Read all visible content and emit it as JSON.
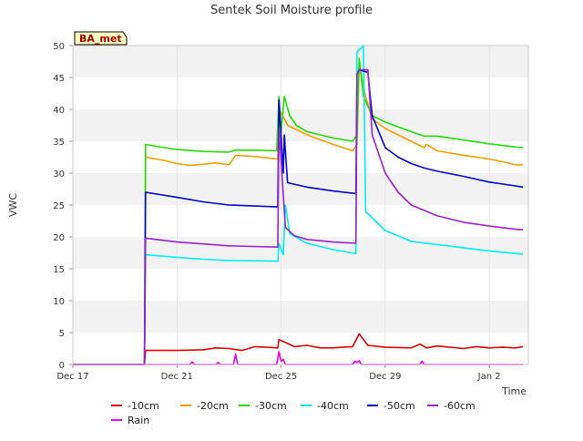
{
  "chart_data": {
    "type": "line",
    "title": "Sentek Soil Moisture profile",
    "xlabel": "Time",
    "ylabel": "VWC",
    "station_tag": "BA_met",
    "x_range": [
      "2022-12-17",
      "2023-01-03T12:00"
    ],
    "ylim": [
      0,
      50
    ],
    "y_ticks": [
      0,
      5,
      10,
      15,
      20,
      25,
      30,
      35,
      40,
      45,
      50
    ],
    "x_ticks": [
      {
        "x": "2022-12-17",
        "label": "Dec 17"
      },
      {
        "x": "2022-12-21",
        "label": "Dec 21"
      },
      {
        "x": "2022-12-25",
        "label": "Dec 25"
      },
      {
        "x": "2022-12-29",
        "label": "Dec 29"
      },
      {
        "x": "2023-01-02",
        "label": "Jan 2"
      }
    ],
    "grid": true,
    "legend_position": "bottom",
    "series": [
      {
        "name": "-10cm",
        "color": "#dd0000",
        "points": [
          [
            "2022-12-17",
            0
          ],
          [
            "2022-12-19T18:00",
            0
          ],
          [
            "2022-12-19T19:00",
            2.2
          ],
          [
            "2022-12-21",
            2.2
          ],
          [
            "2022-12-22",
            2.3
          ],
          [
            "2022-12-22T12:00",
            2.6
          ],
          [
            "2022-12-23",
            2.5
          ],
          [
            "2022-12-23T12:00",
            2.2
          ],
          [
            "2022-12-24",
            2.8
          ],
          [
            "2022-12-24T21:00",
            2.6
          ],
          [
            "2022-12-24T22:00",
            3.9
          ],
          [
            "2022-12-25T06:00",
            3.3
          ],
          [
            "2022-12-25T12:00",
            2.8
          ],
          [
            "2022-12-26",
            3.0
          ],
          [
            "2022-12-26T12:00",
            2.6
          ],
          [
            "2022-12-27",
            2.6
          ],
          [
            "2022-12-27T18:00",
            2.8
          ],
          [
            "2022-12-28",
            4.8
          ],
          [
            "2022-12-28T08:00",
            3.0
          ],
          [
            "2022-12-29",
            2.7
          ],
          [
            "2022-12-30",
            2.6
          ],
          [
            "2022-12-30T08:00",
            3.2
          ],
          [
            "2022-12-30T14:00",
            2.6
          ],
          [
            "2022-12-31",
            2.9
          ],
          [
            "2023-01-01",
            2.5
          ],
          [
            "2023-01-01T12:00",
            2.8
          ],
          [
            "2023-01-02",
            2.6
          ],
          [
            "2023-01-02T12:00",
            2.7
          ],
          [
            "2023-01-03",
            2.6
          ],
          [
            "2023-01-03T07:00",
            2.8
          ]
        ]
      },
      {
        "name": "-20cm",
        "color": "#f0a000",
        "points": [
          [
            "2022-12-17",
            0
          ],
          [
            "2022-12-19T18:00",
            0
          ],
          [
            "2022-12-19T19:00",
            32.5
          ],
          [
            "2022-12-20T12:00",
            32.0
          ],
          [
            "2022-12-21",
            31.5
          ],
          [
            "2022-12-21T12:00",
            31.2
          ],
          [
            "2022-12-22",
            31.4
          ],
          [
            "2022-12-22T12:00",
            31.6
          ],
          [
            "2022-12-23",
            31.3
          ],
          [
            "2022-12-23T06:00",
            32.8
          ],
          [
            "2022-12-24",
            32.6
          ],
          [
            "2022-12-24T21:00",
            32.2
          ],
          [
            "2022-12-24T22:00",
            38.0
          ],
          [
            "2022-12-25",
            39.5
          ],
          [
            "2022-12-25T06:00",
            37.5
          ],
          [
            "2022-12-25T18:00",
            36.5
          ],
          [
            "2022-12-26",
            36.0
          ],
          [
            "2022-12-27",
            34.5
          ],
          [
            "2022-12-27T18:00",
            33.5
          ],
          [
            "2022-12-27T22:00",
            34.5
          ],
          [
            "2022-12-28",
            47.0
          ],
          [
            "2022-12-28T06:00",
            42.0
          ],
          [
            "2022-12-28T12:00",
            38.5
          ],
          [
            "2022-12-29",
            37.0
          ],
          [
            "2022-12-29T12:00",
            36.0
          ],
          [
            "2022-12-30",
            35.0
          ],
          [
            "2022-12-30T12:00",
            34.0
          ],
          [
            "2022-12-30T14:00",
            34.5
          ],
          [
            "2022-12-31",
            33.5
          ],
          [
            "2023-01-01",
            32.8
          ],
          [
            "2023-01-02",
            32.2
          ],
          [
            "2023-01-02T12:00",
            31.8
          ],
          [
            "2023-01-03",
            31.3
          ],
          [
            "2023-01-03T07:00",
            31.3
          ]
        ]
      },
      {
        "name": "-30cm",
        "color": "#22dd00",
        "points": [
          [
            "2022-12-17",
            0
          ],
          [
            "2022-12-19T18:00",
            0
          ],
          [
            "2022-12-19T19:00",
            34.5
          ],
          [
            "2022-12-20T12:00",
            34.0
          ],
          [
            "2022-12-21",
            33.7
          ],
          [
            "2022-12-22",
            33.4
          ],
          [
            "2022-12-23",
            33.3
          ],
          [
            "2022-12-23T06:00",
            33.6
          ],
          [
            "2022-12-24",
            33.6
          ],
          [
            "2022-12-24T20:00",
            33.5
          ],
          [
            "2022-12-24T22:00",
            42.0
          ],
          [
            "2022-12-25",
            36.5
          ],
          [
            "2022-12-25T03:00",
            42.0
          ],
          [
            "2022-12-25T08:00",
            39.0
          ],
          [
            "2022-12-25T14:00",
            37.5
          ],
          [
            "2022-12-26",
            36.5
          ],
          [
            "2022-12-27",
            35.5
          ],
          [
            "2022-12-27T18:00",
            35.0
          ],
          [
            "2022-12-27T22:00",
            36.0
          ],
          [
            "2022-12-28",
            48.0
          ],
          [
            "2022-12-28T04:00",
            42.0
          ],
          [
            "2022-12-28T12:00",
            39.0
          ],
          [
            "2022-12-29",
            38.0
          ],
          [
            "2022-12-30",
            36.5
          ],
          [
            "2022-12-30T12:00",
            35.8
          ],
          [
            "2022-12-31",
            35.8
          ],
          [
            "2023-01-01",
            35.2
          ],
          [
            "2023-01-02",
            34.6
          ],
          [
            "2023-01-03",
            34.1
          ],
          [
            "2023-01-03T07:00",
            34.0
          ]
        ]
      },
      {
        "name": "-40cm",
        "color": "#00eeee",
        "points": [
          [
            "2022-12-17",
            0
          ],
          [
            "2022-12-19T18:00",
            0
          ],
          [
            "2022-12-19T19:00",
            17.2
          ],
          [
            "2022-12-21",
            16.8
          ],
          [
            "2022-12-22",
            16.5
          ],
          [
            "2022-12-23",
            16.3
          ],
          [
            "2022-12-24T21:00",
            16.2
          ],
          [
            "2022-12-24T22:00",
            19.0
          ],
          [
            "2022-12-25T02:00",
            17.2
          ],
          [
            "2022-12-25T04:00",
            25.0
          ],
          [
            "2022-12-25T08:00",
            20.5
          ],
          [
            "2022-12-26",
            19.0
          ],
          [
            "2022-12-27",
            18.0
          ],
          [
            "2022-12-27T21:00",
            17.4
          ],
          [
            "2022-12-27T22:00",
            49.0
          ],
          [
            "2022-12-28T04:00",
            50.0
          ],
          [
            "2022-12-28T06:00",
            24.0
          ],
          [
            "2022-12-28T18:00",
            22.0
          ],
          [
            "2022-12-29",
            21.0
          ],
          [
            "2022-12-30",
            19.3
          ],
          [
            "2022-12-31",
            18.8
          ],
          [
            "2023-01-01",
            18.3
          ],
          [
            "2023-01-02",
            17.8
          ],
          [
            "2023-01-03",
            17.4
          ],
          [
            "2023-01-03T07:00",
            17.3
          ]
        ]
      },
      {
        "name": "-50cm",
        "color": "#0000cc",
        "points": [
          [
            "2022-12-17",
            0
          ],
          [
            "2022-12-19T18:00",
            0
          ],
          [
            "2022-12-19T19:00",
            27.0
          ],
          [
            "2022-12-21",
            26.2
          ],
          [
            "2022-12-22",
            25.5
          ],
          [
            "2022-12-23",
            25.0
          ],
          [
            "2022-12-24T21:00",
            24.7
          ],
          [
            "2022-12-24T22:00",
            41.5
          ],
          [
            "2022-12-25T02:00",
            30.0
          ],
          [
            "2022-12-25T03:00",
            36.0
          ],
          [
            "2022-12-25T06:00",
            28.5
          ],
          [
            "2022-12-26",
            27.8
          ],
          [
            "2022-12-27",
            27.2
          ],
          [
            "2022-12-27T21:00",
            26.8
          ],
          [
            "2022-12-27T22:00",
            45.5
          ],
          [
            "2022-12-28",
            46.2
          ],
          [
            "2022-12-28T08:00",
            45.8
          ],
          [
            "2022-12-28T12:00",
            39.0
          ],
          [
            "2022-12-29",
            34.0
          ],
          [
            "2022-12-29T12:00",
            32.5
          ],
          [
            "2022-12-30",
            31.5
          ],
          [
            "2022-12-30T12:00",
            30.8
          ],
          [
            "2022-12-31",
            30.3
          ],
          [
            "2023-01-01",
            29.5
          ],
          [
            "2023-01-02",
            28.6
          ],
          [
            "2023-01-03",
            28.0
          ],
          [
            "2023-01-03T07:00",
            27.8
          ]
        ]
      },
      {
        "name": "-60cm",
        "color": "#9922cc",
        "points": [
          [
            "2022-12-17",
            0
          ],
          [
            "2022-12-19T18:00",
            0
          ],
          [
            "2022-12-19T19:00",
            19.8
          ],
          [
            "2022-12-21",
            19.2
          ],
          [
            "2022-12-22",
            18.9
          ],
          [
            "2022-12-23",
            18.6
          ],
          [
            "2022-12-24T21:00",
            18.4
          ],
          [
            "2022-12-24T22:00",
            37.0
          ],
          [
            "2022-12-25T04:00",
            21.5
          ],
          [
            "2022-12-25T12:00",
            20.2
          ],
          [
            "2022-12-26",
            19.6
          ],
          [
            "2022-12-27",
            19.2
          ],
          [
            "2022-12-27T21:00",
            19.0
          ],
          [
            "2022-12-27T22:00",
            45.5
          ],
          [
            "2022-12-28",
            46.2
          ],
          [
            "2022-12-28T08:00",
            46.2
          ],
          [
            "2022-12-28T12:00",
            36.0
          ],
          [
            "2022-12-29",
            30.0
          ],
          [
            "2022-12-29T12:00",
            27.0
          ],
          [
            "2022-12-30",
            25.0
          ],
          [
            "2022-12-31",
            23.3
          ],
          [
            "2023-01-01",
            22.3
          ],
          [
            "2023-01-02",
            21.7
          ],
          [
            "2023-01-03",
            21.2
          ],
          [
            "2023-01-03T07:00",
            21.1
          ]
        ]
      },
      {
        "name": "Rain",
        "color": "#ee00ee",
        "points": [
          [
            "2022-12-17",
            0
          ],
          [
            "2022-12-21T12:00",
            0
          ],
          [
            "2022-12-21T14:00",
            0.4
          ],
          [
            "2022-12-21T16:00",
            0
          ],
          [
            "2022-12-22T12:00",
            0
          ],
          [
            "2022-12-22T14:00",
            0.3
          ],
          [
            "2022-12-22T16:00",
            0
          ],
          [
            "2022-12-23T04:00",
            0
          ],
          [
            "2022-12-23T06:00",
            1.6
          ],
          [
            "2022-12-23T08:00",
            0
          ],
          [
            "2022-12-24T20:00",
            0
          ],
          [
            "2022-12-24T22:00",
            2.0
          ],
          [
            "2022-12-25",
            0.5
          ],
          [
            "2022-12-25T02:00",
            0.8
          ],
          [
            "2022-12-25T04:00",
            0
          ],
          [
            "2022-12-27T18:00",
            0
          ],
          [
            "2022-12-27T20:00",
            0.5
          ],
          [
            "2022-12-27T22:00",
            0.3
          ],
          [
            "2022-12-28",
            0.6
          ],
          [
            "2022-12-28T02:00",
            0
          ],
          [
            "2022-12-30T08:00",
            0
          ],
          [
            "2022-12-30T10:00",
            0.5
          ],
          [
            "2022-12-30T12:00",
            0
          ],
          [
            "2023-01-03T07:00",
            0
          ]
        ]
      }
    ]
  }
}
